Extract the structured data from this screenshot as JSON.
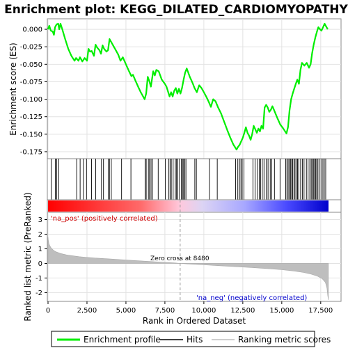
{
  "chart_data": {
    "type": "line",
    "title": "Enrichment plot: KEGG_DILATED_CARDIOMYOPATHY",
    "xlabel": "Rank in Ordered Dataset",
    "ylabel_top": "Enrichment score (ES)",
    "ylabel_bottom": "Ranked list metric (PreRanked)",
    "xlim": [
      0,
      18000
    ],
    "es_ylim": [
      -0.185,
      0.015
    ],
    "metric_ylim": [
      -2.6,
      3.5
    ],
    "x_ticks": [
      0,
      2500,
      5000,
      7500,
      10000,
      12500,
      15000,
      17500
    ],
    "x_tick_labels": [
      "0",
      "2,500",
      "5,000",
      "7,500",
      "10,000",
      "12,500",
      "15,000",
      "17,500"
    ],
    "es_ticks": [
      0.0,
      -0.025,
      -0.05,
      -0.075,
      -0.1,
      -0.125,
      -0.15,
      -0.175
    ],
    "es_tick_labels": [
      "0.000",
      "-0.025",
      "-0.050",
      "-0.075",
      "-0.100",
      "-0.125",
      "-0.150",
      "-0.175"
    ],
    "metric_ticks": [
      3,
      2,
      1,
      0,
      -1,
      -2
    ],
    "metric_tick_labels": [
      "3",
      "2",
      "1",
      "0",
      "-1",
      "-2"
    ],
    "grid": true,
    "legend_position": "bottom",
    "annotations": {
      "pos_label": "'na_pos' (positively correlated)",
      "neg_label": "'na_neg' (negatively correlated)",
      "zero_cross_label": "Zero cross at 8480",
      "zero_cross": 8480
    },
    "series": [
      {
        "name": "Enrichment profile",
        "color": "#00ee00",
        "points": [
          [
            0,
            0.0
          ],
          [
            80,
            0.005
          ],
          [
            180,
            -0.002
          ],
          [
            300,
            -0.003
          ],
          [
            380,
            -0.008
          ],
          [
            450,
            0.003
          ],
          [
            550,
            0.007
          ],
          [
            650,
            0.008
          ],
          [
            720,
            0.0
          ],
          [
            800,
            0.008
          ],
          [
            900,
            0.001
          ],
          [
            1100,
            -0.014
          ],
          [
            1300,
            -0.028
          ],
          [
            1500,
            -0.038
          ],
          [
            1700,
            -0.045
          ],
          [
            1800,
            -0.041
          ],
          [
            1950,
            -0.045
          ],
          [
            2050,
            -0.04
          ],
          [
            2200,
            -0.046
          ],
          [
            2350,
            -0.041
          ],
          [
            2500,
            -0.045
          ],
          [
            2600,
            -0.028
          ],
          [
            2700,
            -0.032
          ],
          [
            2800,
            -0.031
          ],
          [
            2950,
            -0.038
          ],
          [
            3050,
            -0.022
          ],
          [
            3150,
            -0.026
          ],
          [
            3300,
            -0.03
          ],
          [
            3400,
            -0.035
          ],
          [
            3500,
            -0.023
          ],
          [
            3600,
            -0.028
          ],
          [
            3750,
            -0.032
          ],
          [
            3850,
            -0.03
          ],
          [
            3950,
            -0.014
          ],
          [
            4100,
            -0.02
          ],
          [
            4300,
            -0.028
          ],
          [
            4500,
            -0.036
          ],
          [
            4650,
            -0.045
          ],
          [
            4800,
            -0.04
          ],
          [
            5000,
            -0.05
          ],
          [
            5200,
            -0.06
          ],
          [
            5350,
            -0.067
          ],
          [
            5450,
            -0.065
          ],
          [
            5600,
            -0.073
          ],
          [
            5800,
            -0.083
          ],
          [
            5950,
            -0.09
          ],
          [
            6100,
            -0.096
          ],
          [
            6200,
            -0.1
          ],
          [
            6300,
            -0.092
          ],
          [
            6400,
            -0.068
          ],
          [
            6500,
            -0.074
          ],
          [
            6600,
            -0.082
          ],
          [
            6750,
            -0.06
          ],
          [
            6850,
            -0.066
          ],
          [
            6950,
            -0.058
          ],
          [
            7100,
            -0.06
          ],
          [
            7200,
            -0.066
          ],
          [
            7300,
            -0.072
          ],
          [
            7500,
            -0.078
          ],
          [
            7600,
            -0.082
          ],
          [
            7700,
            -0.089
          ],
          [
            7800,
            -0.096
          ],
          [
            7900,
            -0.09
          ],
          [
            8000,
            -0.096
          ],
          [
            8100,
            -0.088
          ],
          [
            8200,
            -0.084
          ],
          [
            8300,
            -0.092
          ],
          [
            8400,
            -0.085
          ],
          [
            8500,
            -0.092
          ],
          [
            8600,
            -0.084
          ],
          [
            8700,
            -0.072
          ],
          [
            8800,
            -0.062
          ],
          [
            8900,
            -0.056
          ],
          [
            9000,
            -0.062
          ],
          [
            9100,
            -0.068
          ],
          [
            9200,
            -0.073
          ],
          [
            9300,
            -0.078
          ],
          [
            9400,
            -0.084
          ],
          [
            9550,
            -0.09
          ],
          [
            9700,
            -0.08
          ],
          [
            9850,
            -0.084
          ],
          [
            10000,
            -0.09
          ],
          [
            10150,
            -0.096
          ],
          [
            10300,
            -0.103
          ],
          [
            10450,
            -0.111
          ],
          [
            10600,
            -0.1
          ],
          [
            10750,
            -0.103
          ],
          [
            10900,
            -0.111
          ],
          [
            11100,
            -0.12
          ],
          [
            11300,
            -0.132
          ],
          [
            11500,
            -0.144
          ],
          [
            11700,
            -0.155
          ],
          [
            11900,
            -0.165
          ],
          [
            12100,
            -0.172
          ],
          [
            12200,
            -0.168
          ],
          [
            12300,
            -0.165
          ],
          [
            12400,
            -0.16
          ],
          [
            12500,
            -0.155
          ],
          [
            12600,
            -0.148
          ],
          [
            12700,
            -0.14
          ],
          [
            12800,
            -0.148
          ],
          [
            12900,
            -0.152
          ],
          [
            13000,
            -0.158
          ],
          [
            13100,
            -0.15
          ],
          [
            13200,
            -0.138
          ],
          [
            13300,
            -0.143
          ],
          [
            13400,
            -0.148
          ],
          [
            13500,
            -0.142
          ],
          [
            13600,
            -0.146
          ],
          [
            13700,
            -0.138
          ],
          [
            13800,
            -0.142
          ],
          [
            13900,
            -0.112
          ],
          [
            14000,
            -0.108
          ],
          [
            14100,
            -0.112
          ],
          [
            14200,
            -0.118
          ],
          [
            14300,
            -0.115
          ],
          [
            14400,
            -0.11
          ],
          [
            14500,
            -0.115
          ],
          [
            14700,
            -0.126
          ],
          [
            14900,
            -0.136
          ],
          [
            15100,
            -0.142
          ],
          [
            15300,
            -0.149
          ],
          [
            15400,
            -0.14
          ],
          [
            15500,
            -0.116
          ],
          [
            15600,
            -0.1
          ],
          [
            15700,
            -0.092
          ],
          [
            15800,
            -0.085
          ],
          [
            15900,
            -0.078
          ],
          [
            16000,
            -0.072
          ],
          [
            16100,
            -0.078
          ],
          [
            16200,
            -0.058
          ],
          [
            16300,
            -0.048
          ],
          [
            16450,
            -0.052
          ],
          [
            16600,
            -0.048
          ],
          [
            16750,
            -0.055
          ],
          [
            16850,
            -0.05
          ],
          [
            16950,
            -0.034
          ],
          [
            17050,
            -0.022
          ],
          [
            17150,
            -0.012
          ],
          [
            17250,
            -0.004
          ],
          [
            17350,
            0.003
          ],
          [
            17450,
            0.0
          ],
          [
            17550,
            -0.002
          ],
          [
            17650,
            0.003
          ],
          [
            17750,
            0.008
          ],
          [
            17850,
            0.004
          ],
          [
            17950,
            0.0
          ]
        ]
      },
      {
        "name": "Hits",
        "color": "#000000",
        "hit_positions": [
          210,
          470,
          560,
          690,
          1840,
          2060,
          2270,
          2470,
          2790,
          3060,
          3430,
          3560,
          3880,
          3940,
          4060,
          4720,
          5320,
          6230,
          6300,
          6440,
          6510,
          6610,
          6700,
          7070,
          7530,
          7740,
          7830,
          7910,
          8030,
          8170,
          8250,
          8320,
          8440,
          8560,
          8630,
          8700,
          8780,
          8850,
          9420,
          9520,
          10360,
          10860,
          12040,
          12180,
          12290,
          12380,
          12460,
          12570,
          13150,
          13290,
          13450,
          13560,
          13640,
          13750,
          13860,
          14010,
          14120,
          14260,
          14360,
          14530,
          14890,
          15250,
          15330,
          15410,
          15480,
          15560,
          15630,
          15700,
          15780,
          15850,
          15920,
          16010,
          16090,
          16210,
          16320,
          16430,
          16580,
          16690,
          16800,
          16890,
          16960,
          17030,
          17100,
          17170,
          17240,
          17320,
          17410,
          17520,
          17640,
          17730,
          17820
        ]
      },
      {
        "name": "Ranking metric scores",
        "color": "#bebebe",
        "points": [
          [
            0,
            1.8
          ],
          [
            20,
            1.6
          ],
          [
            60,
            1.35
          ],
          [
            120,
            1.2
          ],
          [
            200,
            1.05
          ],
          [
            350,
            0.9
          ],
          [
            500,
            0.8
          ],
          [
            800,
            0.68
          ],
          [
            1200,
            0.58
          ],
          [
            2000,
            0.46
          ],
          [
            3000,
            0.37
          ],
          [
            4000,
            0.3
          ],
          [
            5000,
            0.23
          ],
          [
            6000,
            0.17
          ],
          [
            7000,
            0.1
          ],
          [
            8000,
            0.04
          ],
          [
            8480,
            0.0
          ],
          [
            9000,
            -0.04
          ],
          [
            10000,
            -0.1
          ],
          [
            11000,
            -0.16
          ],
          [
            12000,
            -0.22
          ],
          [
            13000,
            -0.28
          ],
          [
            14000,
            -0.35
          ],
          [
            15000,
            -0.43
          ],
          [
            15800,
            -0.52
          ],
          [
            16400,
            -0.62
          ],
          [
            16900,
            -0.74
          ],
          [
            17300,
            -0.88
          ],
          [
            17600,
            -1.05
          ],
          [
            17800,
            -1.3
          ],
          [
            17900,
            -1.7
          ],
          [
            17950,
            -2.2
          ],
          [
            17990,
            -2.5
          ]
        ]
      }
    ],
    "legend": [
      "Enrichment profile",
      "Hits",
      "Ranking metric scores"
    ]
  }
}
